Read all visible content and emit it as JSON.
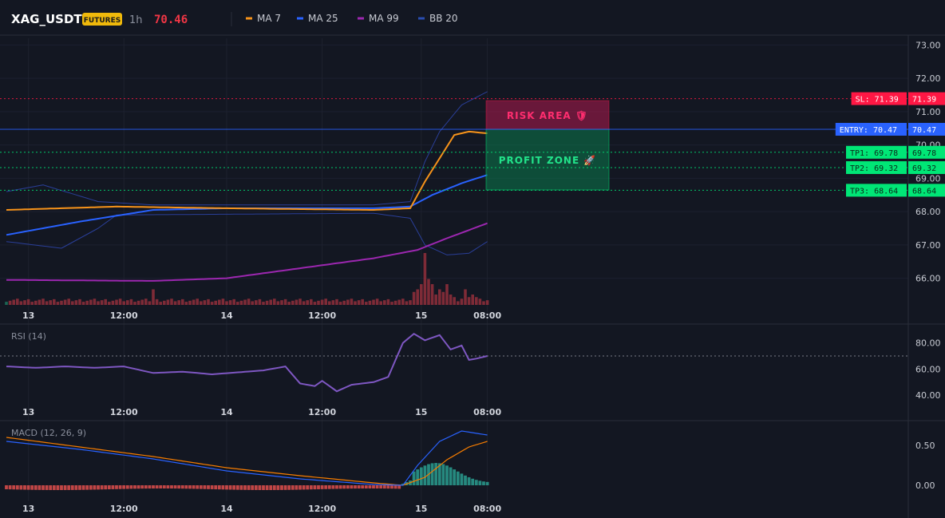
{
  "header": {
    "symbol": "XAG_USDT",
    "badge": "FUTURES",
    "interval": "1h",
    "last_price": "70.46",
    "legend": [
      {
        "label": "MA 7",
        "color": "#f7931a"
      },
      {
        "label": "MA 25",
        "color": "#2962ff"
      },
      {
        "label": "MA 99",
        "color": "#9c27b0"
      },
      {
        "label": "BB 20",
        "color": "#2a4db0"
      }
    ]
  },
  "colors": {
    "background": "#131722",
    "up": "#00e676",
    "down": "#ff1744",
    "ma7": "#f7931a",
    "ma25": "#2962ff",
    "ma99": "#9c27b0",
    "bb": "#2a3f99",
    "sl": "#ff1744",
    "entry": "#2962ff",
    "tp": "#00e676",
    "rsi": "#7e57c2",
    "macd": "#2962ff",
    "signal": "#f57c00"
  },
  "time_labels": [
    "13",
    "12:00",
    "14",
    "12:00",
    "15",
    "08:00"
  ],
  "price_axis": [
    "73.00",
    "72.00",
    "71.00",
    "70.00",
    "69.00",
    "68.00",
    "67.00",
    "66.00"
  ],
  "rsi_axis": [
    "80.00",
    "60.00",
    "40.00"
  ],
  "macd_axis": [
    "0.50",
    "0.00"
  ],
  "panes": {
    "rsi_title": "RSI (14)",
    "macd_title": "MACD (12, 26, 9)"
  },
  "levels": {
    "sl": {
      "value": 71.39,
      "axis_label": "SL: 71.39",
      "price": "71.39"
    },
    "entry": {
      "value": 70.47,
      "axis_label": "ENTRY: 70.47",
      "price": "70.47"
    },
    "tp1": {
      "value": 69.78,
      "axis_label": "TP1: 69.78",
      "price": "69.78"
    },
    "tp2": {
      "value": 69.32,
      "axis_label": "TP2: 69.32",
      "price": "69.32"
    },
    "tp3": {
      "value": 68.64,
      "axis_label": "TP3: 68.64",
      "price": "68.64"
    }
  },
  "zones": {
    "risk_label": "RISK AREA 🛡",
    "profit_label": "PROFIT ZONE 🚀"
  },
  "chart_data": [
    {
      "type": "candlestick",
      "title": "XAG_USDT 1h",
      "ylim": [
        65.2,
        73.2
      ],
      "x": [
        "13",
        "12:00",
        "14",
        "12:00",
        "15",
        "08:00"
      ],
      "ohlc_summary": "Sideways 68.0-68.3 from 13 through 15 01:00, breakout to ~70.7 after 15 00:00, last 70.46",
      "close_anchors": [
        {
          "bar": 0,
          "value": 68.0
        },
        {
          "bar": 14,
          "value": 68.15
        },
        {
          "bar": 38,
          "value": 68.1
        },
        {
          "bar": 72,
          "value": 68.15
        },
        {
          "bar": 100,
          "value": 67.95
        },
        {
          "bar": 110,
          "value": 68.05
        },
        {
          "bar": 111,
          "value": 68.2
        },
        {
          "bar": 112,
          "value": 69.35
        },
        {
          "bar": 113,
          "value": 69.9
        },
        {
          "bar": 115,
          "value": 70.1
        },
        {
          "bar": 116,
          "value": 70.0
        },
        {
          "bar": 118,
          "value": 70.45
        },
        {
          "bar": 120,
          "value": 70.65
        },
        {
          "bar": 124,
          "value": 70.4
        },
        {
          "bar": 126,
          "value": 70.1
        },
        {
          "bar": 129,
          "value": 70.3
        },
        {
          "bar": 131,
          "value": 70.46
        }
      ],
      "series": [
        {
          "name": "MA 7",
          "anchors": [
            [
              0,
              68.05
            ],
            [
              30,
              68.15
            ],
            [
              60,
              68.1
            ],
            [
              100,
              68.05
            ],
            [
              110,
              68.1
            ],
            [
              114,
              68.9
            ],
            [
              118,
              69.6
            ],
            [
              122,
              70.3
            ],
            [
              126,
              70.4
            ],
            [
              131,
              70.35
            ]
          ]
        },
        {
          "name": "MA 25",
          "anchors": [
            [
              0,
              67.3
            ],
            [
              20,
              67.7
            ],
            [
              40,
              68.05
            ],
            [
              60,
              68.1
            ],
            [
              100,
              68.1
            ],
            [
              110,
              68.15
            ],
            [
              116,
              68.5
            ],
            [
              124,
              68.85
            ],
            [
              131,
              69.1
            ]
          ]
        },
        {
          "name": "MA 99",
          "anchors": [
            [
              0,
              65.95
            ],
            [
              40,
              65.92
            ],
            [
              60,
              66.0
            ],
            [
              80,
              66.3
            ],
            [
              100,
              66.6
            ],
            [
              112,
              66.85
            ],
            [
              120,
              67.2
            ],
            [
              131,
              67.65
            ]
          ]
        },
        {
          "name": "BB 20 upper",
          "anchors": [
            [
              0,
              68.6
            ],
            [
              10,
              68.8
            ],
            [
              25,
              68.3
            ],
            [
              40,
              68.2
            ],
            [
              100,
              68.2
            ],
            [
              110,
              68.3
            ],
            [
              114,
              69.5
            ],
            [
              118,
              70.4
            ],
            [
              124,
              71.2
            ],
            [
              131,
              71.6
            ]
          ]
        },
        {
          "name": "BB 20 lower",
          "anchors": [
            [
              0,
              67.1
            ],
            [
              15,
              66.9
            ],
            [
              25,
              67.5
            ],
            [
              30,
              67.9
            ],
            [
              100,
              67.95
            ],
            [
              110,
              67.8
            ],
            [
              114,
              67.0
            ],
            [
              120,
              66.7
            ],
            [
              126,
              66.75
            ],
            [
              131,
              67.1
            ]
          ]
        }
      ],
      "volume_peaks": [
        {
          "bar": 40,
          "value": 3
        },
        {
          "bar": 114,
          "value": 10
        },
        {
          "bar": 115,
          "value": 5
        },
        {
          "bar": 116,
          "value": 4
        },
        {
          "bar": 120,
          "value": 4
        }
      ]
    },
    {
      "type": "line",
      "title": "RSI (14)",
      "ylim": [
        34,
        92
      ],
      "reference": 70,
      "anchors": [
        [
          0,
          62
        ],
        [
          8,
          61
        ],
        [
          16,
          62
        ],
        [
          24,
          61
        ],
        [
          32,
          62
        ],
        [
          40,
          57
        ],
        [
          48,
          58
        ],
        [
          56,
          56
        ],
        [
          70,
          59
        ],
        [
          76,
          62
        ],
        [
          80,
          49
        ],
        [
          84,
          47
        ],
        [
          86,
          51
        ],
        [
          90,
          43
        ],
        [
          94,
          48
        ],
        [
          100,
          50
        ],
        [
          104,
          54
        ],
        [
          108,
          80
        ],
        [
          111,
          87
        ],
        [
          114,
          82
        ],
        [
          118,
          86
        ],
        [
          121,
          75
        ],
        [
          124,
          78
        ],
        [
          126,
          67
        ],
        [
          128,
          68
        ],
        [
          131,
          70
        ]
      ]
    },
    {
      "type": "line",
      "title": "MACD (12, 26, 9)",
      "ylim": [
        -0.2,
        0.78
      ],
      "series": [
        {
          "name": "MACD",
          "anchors": [
            [
              0,
              0.55
            ],
            [
              20,
              0.45
            ],
            [
              40,
              0.33
            ],
            [
              60,
              0.18
            ],
            [
              80,
              0.08
            ],
            [
              100,
              0.01
            ],
            [
              108,
              0.0
            ],
            [
              112,
              0.25
            ],
            [
              118,
              0.55
            ],
            [
              124,
              0.68
            ],
            [
              131,
              0.63
            ]
          ]
        },
        {
          "name": "Signal",
          "anchors": [
            [
              0,
              0.6
            ],
            [
              20,
              0.48
            ],
            [
              40,
              0.36
            ],
            [
              60,
              0.22
            ],
            [
              80,
              0.12
            ],
            [
              100,
              0.03
            ],
            [
              108,
              0.0
            ],
            [
              114,
              0.1
            ],
            [
              120,
              0.32
            ],
            [
              126,
              0.48
            ],
            [
              131,
              0.55
            ]
          ]
        }
      ],
      "histogram_summary": "Negative bars (~-0.05) from 13 through 15 00:00, positive bars up to ~0.25 after breakout"
    }
  ]
}
